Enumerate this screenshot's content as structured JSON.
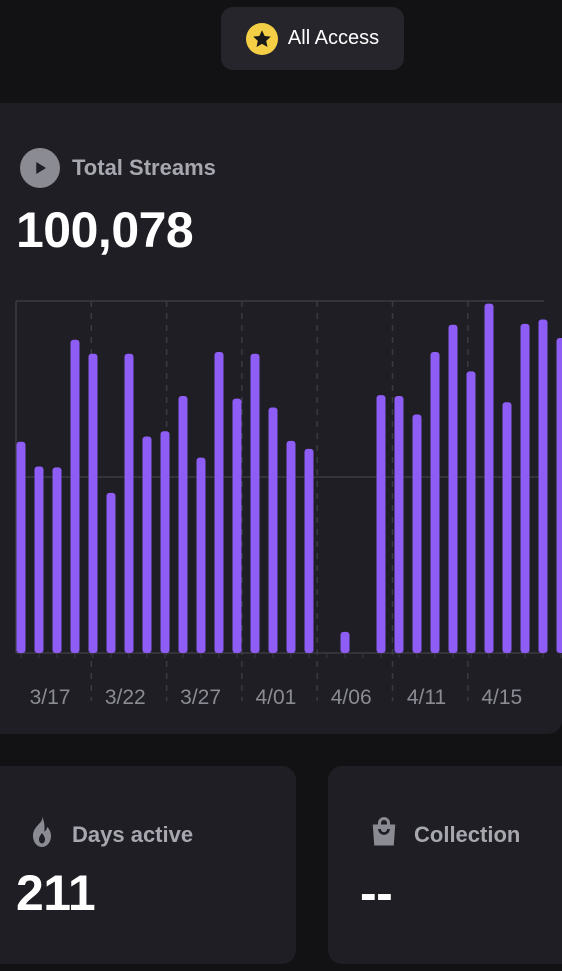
{
  "header": {
    "pill_label": "All Access",
    "pill_icon": "star-icon",
    "pill_icon_color": "#f4cf46"
  },
  "streams": {
    "label": "Total Streams",
    "icon": "play-icon",
    "value": "100,078"
  },
  "chart_data": {
    "type": "bar",
    "color": "#8e5df5",
    "x_tick_labels": [
      "3/17",
      "3/22",
      "3/27",
      "4/01",
      "4/06",
      "4/11",
      "4/15"
    ],
    "values": [
      1200,
      1060,
      1055,
      1780,
      1700,
      910,
      1700,
      1230,
      1260,
      1460,
      1110,
      1710,
      1445,
      1700,
      1395,
      1205,
      1160,
      0,
      120,
      0,
      1465,
      1460,
      1355,
      1710,
      1865,
      1600,
      1985,
      1425,
      1870,
      1895,
      1790
    ],
    "ylim": [
      0,
      2000
    ],
    "grid": true
  },
  "days_active": {
    "label": "Days active",
    "icon": "flame-icon",
    "value": "211"
  },
  "collection": {
    "label": "Collection",
    "icon": "shopping-bag-icon",
    "value": "--"
  }
}
